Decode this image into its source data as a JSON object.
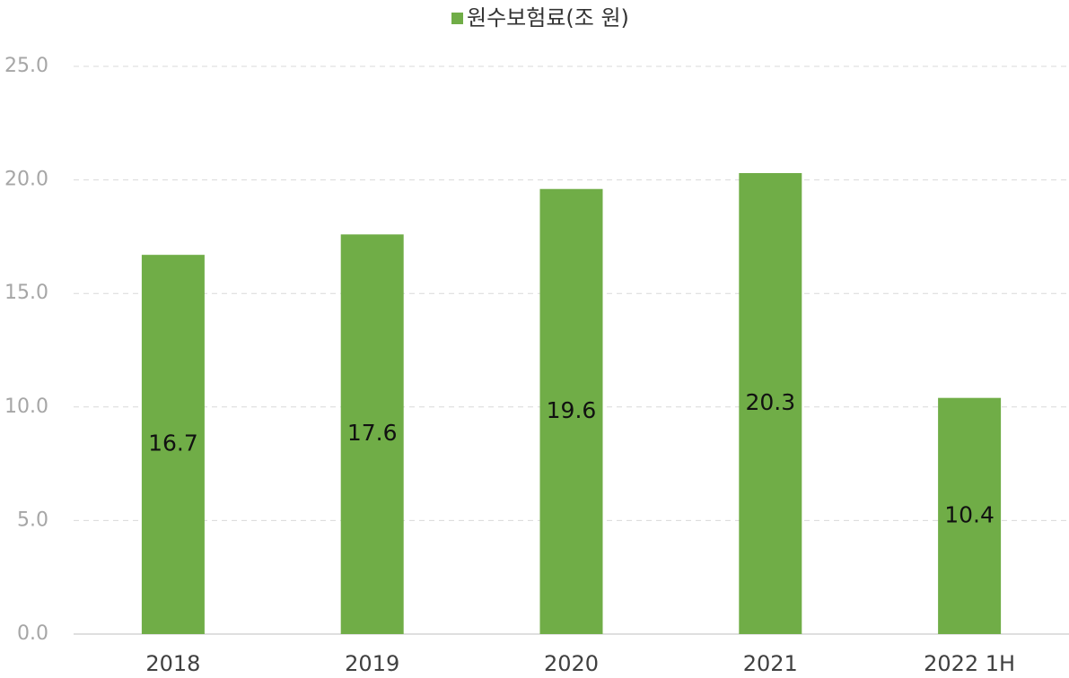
{
  "chart_data": {
    "type": "bar",
    "categories": [
      "2018",
      "2019",
      "2020",
      "2021",
      "2022 1H"
    ],
    "series": [
      {
        "name": "원수보험료(조 원)",
        "color": "#70ad47",
        "values": [
          16.7,
          17.6,
          19.6,
          20.3,
          10.4
        ]
      }
    ],
    "ylim": [
      0,
      25
    ],
    "yticks": [
      {
        "value": 0,
        "label": "0.0"
      },
      {
        "value": 5,
        "label": "5.0"
      },
      {
        "value": 10,
        "label": "10.0"
      },
      {
        "value": 15,
        "label": "15.0"
      },
      {
        "value": 20,
        "label": "20.0"
      },
      {
        "value": 25,
        "label": "25.0"
      }
    ],
    "grid": true,
    "legend": "top"
  }
}
